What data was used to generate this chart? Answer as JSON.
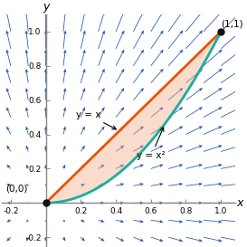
{
  "xlim": [
    -0.25,
    1.08
  ],
  "ylim": [
    -0.25,
    1.1
  ],
  "xticks": [
    -0.2,
    0.2,
    0.4,
    0.6,
    0.8,
    1.0
  ],
  "yticks": [
    -0.2,
    0.2,
    0.4,
    0.6,
    0.8,
    1.0
  ],
  "xtick_labels": [
    "-0.2",
    "0.2",
    "0.4",
    "0.6",
    "0.8",
    "1.0"
  ],
  "ytick_labels": [
    "-0.2",
    "0.2",
    "0.4",
    "0.6",
    "0.8",
    "1.0"
  ],
  "line_color": "#E8540A",
  "curve_color": "#1AADA0",
  "shade_color": "#F5A880",
  "arrow_color": "#2255AA",
  "point_color": "#111111",
  "label_yx": "y = x",
  "label_yx2": "y = x²",
  "label_00": "(0,0)",
  "label_11": "(1,1)",
  "xlabel": "x",
  "ylabel": "y",
  "figsize": [
    2.73,
    2.73
  ],
  "dpi": 100
}
